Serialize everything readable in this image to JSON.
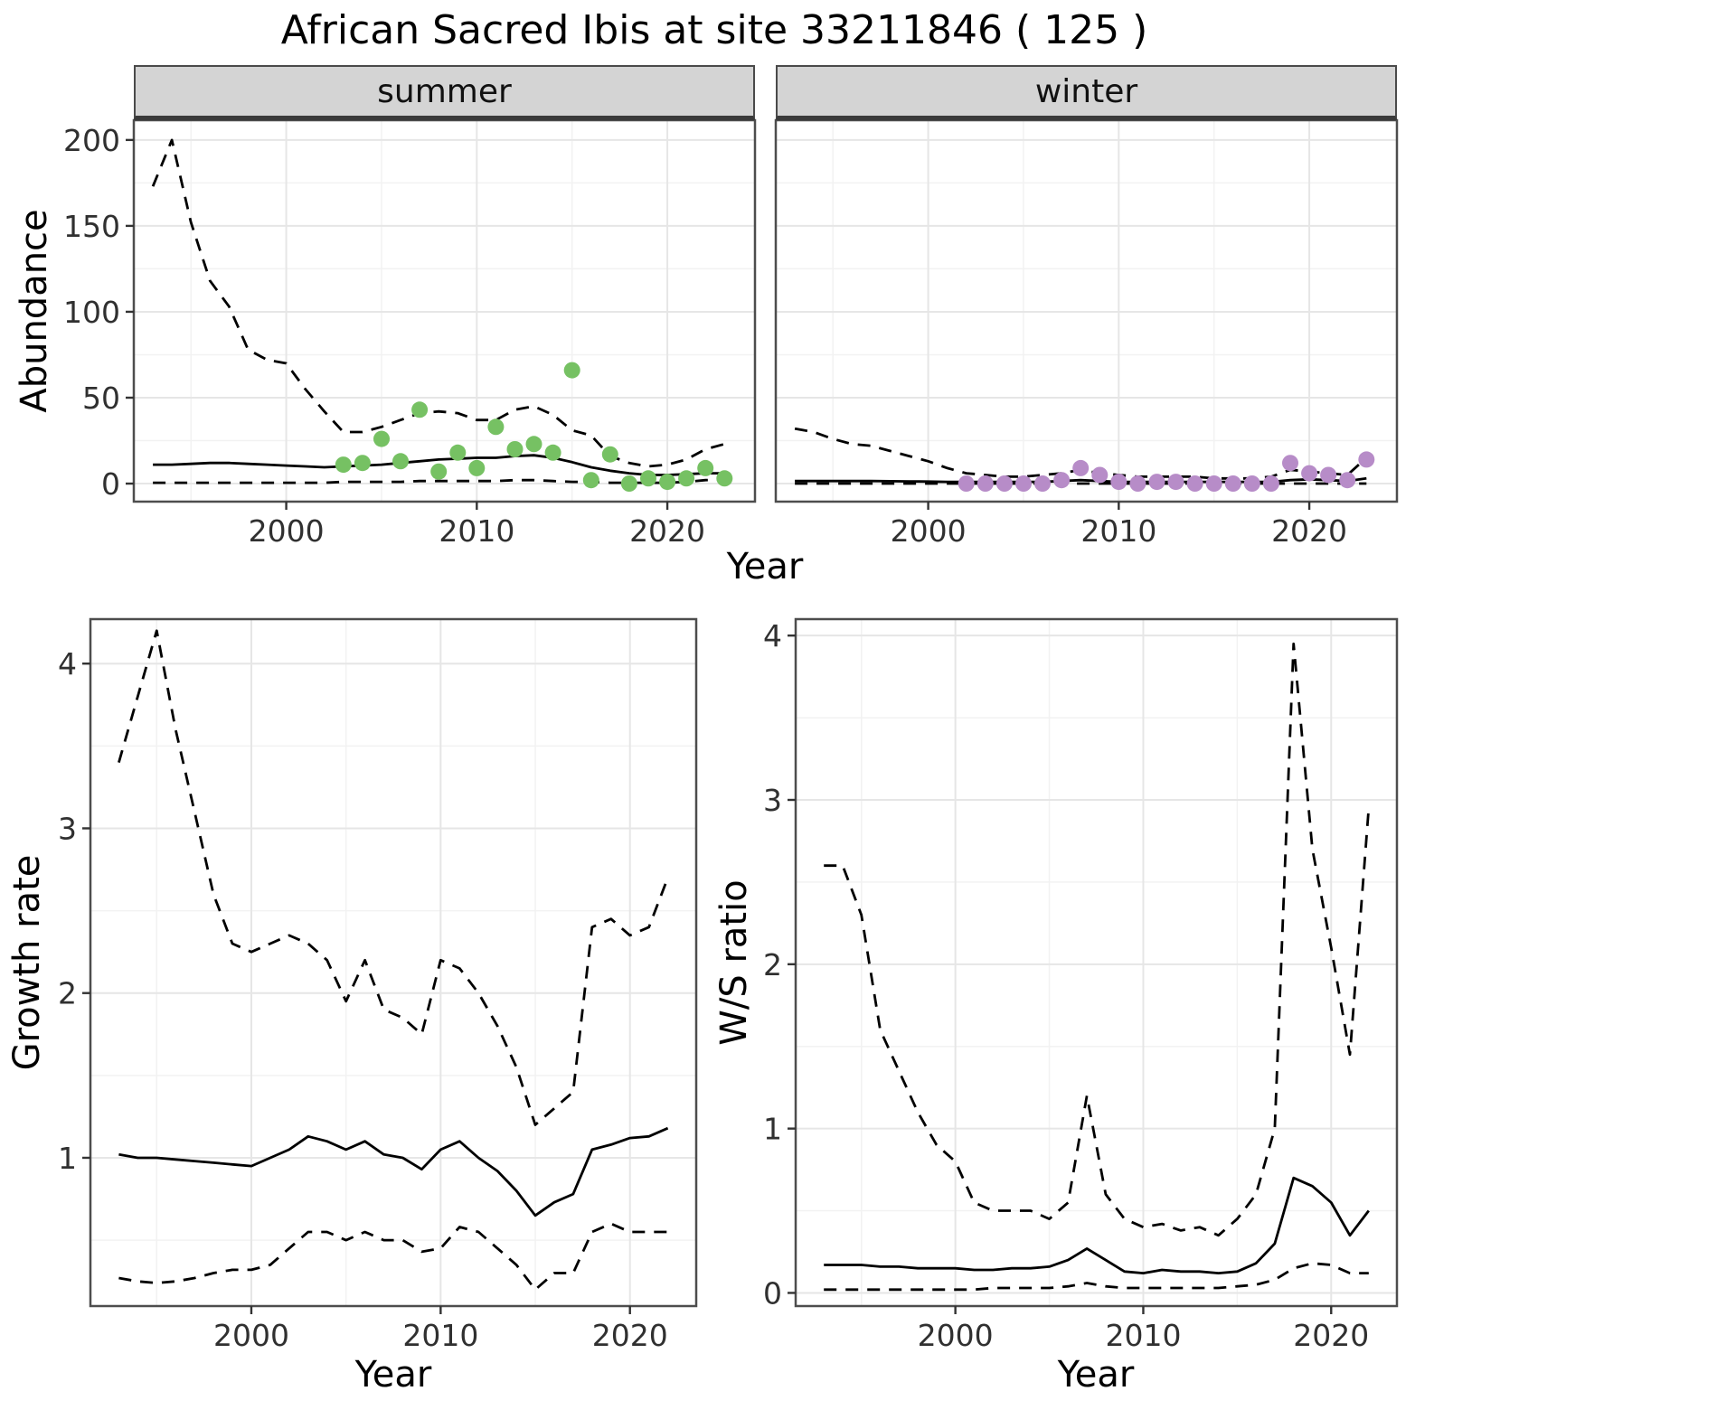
{
  "title": "African Sacred Ibis at site 33211846 ( 125 )",
  "colors": {
    "line": "#000000",
    "grid_major": "#e6e6e6",
    "grid_minor": "#f2f2f2",
    "panel_border": "#4d4d4d",
    "strip_bg": "#d4d4d4",
    "summer_points": "#76c163",
    "winter_points": "#b78cc8",
    "tick_text": "#303030"
  },
  "chart_data": [
    {
      "id": "abundance-summer",
      "type": "line",
      "facet": "summer",
      "ylabel": "Abundance",
      "xlabel": "Year",
      "xlim": [
        1992,
        2024.6
      ],
      "ylim": [
        -10.5,
        211.5
      ],
      "xticks": [
        2000,
        2010,
        2020
      ],
      "yticks": [
        0,
        50,
        100,
        150,
        200
      ],
      "xminor": [
        1995,
        2005,
        2015
      ],
      "yminor": [
        25,
        75,
        125,
        175
      ],
      "grid": true,
      "legend": "none",
      "series": [
        {
          "name": "upper-ci",
          "style": "dashed",
          "x": [
            1993,
            1994,
            1995,
            1996,
            1997,
            1998,
            1999,
            2000,
            2001,
            2002,
            2003,
            2004,
            2005,
            2006,
            2007,
            2008,
            2009,
            2010,
            2011,
            2012,
            2013,
            2014,
            2015,
            2016,
            2017,
            2018,
            2019,
            2020,
            2021,
            2022,
            2023
          ],
          "y": [
            173,
            200,
            152,
            118,
            103,
            78,
            72,
            70,
            55,
            42,
            30,
            30,
            33,
            37,
            41,
            42,
            41,
            37,
            37,
            43,
            45,
            40,
            31,
            28,
            16,
            12,
            10,
            11,
            14,
            20,
            23
          ]
        },
        {
          "name": "median",
          "style": "solid",
          "x": [
            1993,
            1994,
            1995,
            1996,
            1997,
            1998,
            1999,
            2000,
            2001,
            2002,
            2003,
            2004,
            2005,
            2006,
            2007,
            2008,
            2009,
            2010,
            2011,
            2012,
            2013,
            2014,
            2015,
            2016,
            2017,
            2018,
            2019,
            2020,
            2021,
            2022,
            2023
          ],
          "y": [
            11,
            11,
            11.5,
            12,
            12,
            11.5,
            11,
            10.5,
            10,
            9.5,
            10,
            10.5,
            11,
            12,
            13,
            14,
            14.5,
            15,
            15,
            16,
            16.5,
            15,
            12.5,
            9.5,
            7.5,
            6,
            5,
            5,
            5.5,
            6,
            6
          ]
        },
        {
          "name": "lower-ci",
          "style": "dashed",
          "x": [
            1993,
            1994,
            1995,
            1996,
            1997,
            1998,
            1999,
            2000,
            2001,
            2002,
            2003,
            2004,
            2005,
            2006,
            2007,
            2008,
            2009,
            2010,
            2011,
            2012,
            2013,
            2014,
            2015,
            2016,
            2017,
            2018,
            2019,
            2020,
            2021,
            2022,
            2023
          ],
          "y": [
            0.5,
            0.5,
            0.5,
            0.5,
            0.5,
            0.5,
            0.5,
            0.5,
            0.5,
            0.5,
            1,
            1,
            1,
            1,
            1.5,
            1.5,
            1.5,
            1.5,
            1.5,
            2,
            2,
            1.5,
            1,
            1,
            0.5,
            0.5,
            0.5,
            0.5,
            1,
            2,
            2.5
          ]
        },
        {
          "name": "observations",
          "style": "points",
          "color": "#76c163",
          "x": [
            2003,
            2004,
            2005,
            2006,
            2007,
            2008,
            2009,
            2010,
            2011,
            2012,
            2013,
            2014,
            2015,
            2016,
            2017,
            2018,
            2019,
            2020,
            2021,
            2022,
            2023
          ],
          "y": [
            11,
            12,
            26,
            13,
            43,
            7,
            18,
            9,
            33,
            20,
            23,
            18,
            66,
            2,
            17,
            0,
            3,
            1,
            3,
            9,
            3
          ]
        }
      ]
    },
    {
      "id": "abundance-winter",
      "type": "line",
      "facet": "winter",
      "ylabel": "Abundance",
      "xlabel": "Year",
      "xlim": [
        1992,
        2024.6
      ],
      "ylim": [
        -10.5,
        211.5
      ],
      "xticks": [
        2000,
        2010,
        2020
      ],
      "yticks": [
        0,
        50,
        100,
        150,
        200
      ],
      "xminor": [
        1995,
        2005,
        2015
      ],
      "yminor": [
        25,
        75,
        125,
        175
      ],
      "grid": true,
      "legend": "none",
      "series": [
        {
          "name": "upper-ci",
          "style": "dashed",
          "x": [
            1993,
            1994,
            1995,
            1996,
            1997,
            1998,
            1999,
            2000,
            2001,
            2002,
            2003,
            2004,
            2005,
            2006,
            2007,
            2008,
            2009,
            2010,
            2011,
            2012,
            2013,
            2014,
            2015,
            2016,
            2017,
            2018,
            2019,
            2020,
            2021,
            2022,
            2023
          ],
          "y": [
            32,
            30,
            26,
            23,
            22,
            19,
            16,
            13,
            9,
            6,
            5,
            4,
            4,
            5,
            6,
            8,
            6,
            5,
            4,
            4,
            4,
            4,
            3,
            3,
            3,
            4,
            8,
            7,
            6,
            5,
            15
          ]
        },
        {
          "name": "median",
          "style": "solid",
          "x": [
            1993,
            1994,
            1995,
            1996,
            1997,
            1998,
            1999,
            2000,
            2001,
            2002,
            2003,
            2004,
            2005,
            2006,
            2007,
            2008,
            2009,
            2010,
            2011,
            2012,
            2013,
            2014,
            2015,
            2016,
            2017,
            2018,
            2019,
            2020,
            2021,
            2022,
            2023
          ],
          "y": [
            1.5,
            1.5,
            1.5,
            1.5,
            1.5,
            1.4,
            1.3,
            1.2,
            1,
            1,
            1,
            1,
            1,
            1,
            1.5,
            2,
            1.5,
            1,
            1,
            1,
            1,
            1,
            1,
            1,
            1,
            1,
            2,
            2.5,
            2,
            1.5,
            3
          ]
        },
        {
          "name": "lower-ci",
          "style": "dashed",
          "x": [
            1993,
            1994,
            1995,
            1996,
            1997,
            1998,
            1999,
            2000,
            2001,
            2002,
            2003,
            2004,
            2005,
            2006,
            2007,
            2008,
            2009,
            2010,
            2011,
            2012,
            2013,
            2014,
            2015,
            2016,
            2017,
            2018,
            2019,
            2020,
            2021,
            2022,
            2023
          ],
          "y": [
            0,
            0,
            0,
            0,
            0,
            0,
            0,
            0,
            0,
            0,
            0,
            0,
            0,
            0,
            0,
            0,
            0,
            0,
            0,
            0,
            0,
            0,
            0,
            0,
            0,
            0,
            0,
            0,
            0,
            0,
            0
          ]
        },
        {
          "name": "observations",
          "style": "points",
          "color": "#b78cc8",
          "x": [
            2002,
            2003,
            2004,
            2005,
            2006,
            2007,
            2008,
            2009,
            2010,
            2011,
            2012,
            2013,
            2014,
            2015,
            2016,
            2017,
            2018,
            2019,
            2020,
            2021,
            2022,
            2023
          ],
          "y": [
            0,
            0,
            0,
            0,
            0,
            2,
            9,
            5,
            1,
            0,
            1,
            1,
            0,
            0,
            0,
            0,
            0,
            12,
            6,
            5,
            2,
            14
          ]
        }
      ]
    },
    {
      "id": "growth-rate",
      "type": "line",
      "facet": "",
      "ylabel": "Growth rate",
      "xlabel": "Year",
      "xlim": [
        1991.5,
        2023.5
      ],
      "ylim": [
        0.1,
        4.27
      ],
      "xticks": [
        2000,
        2010,
        2020
      ],
      "yticks": [
        1,
        2,
        3,
        4
      ],
      "xminor": [
        1995,
        2005,
        2015
      ],
      "yminor": [
        0.5,
        1.5,
        2.5,
        3.5
      ],
      "grid": true,
      "legend": "none",
      "series": [
        {
          "name": "upper-ci",
          "style": "dashed",
          "x": [
            1993,
            1994,
            1995,
            1996,
            1997,
            1998,
            1999,
            2000,
            2001,
            2002,
            2003,
            2004,
            2005,
            2006,
            2007,
            2008,
            2009,
            2010,
            2011,
            2012,
            2013,
            2014,
            2015,
            2016,
            2017,
            2018,
            2019,
            2020,
            2021,
            2022
          ],
          "y": [
            3.4,
            3.8,
            4.2,
            3.6,
            3.1,
            2.6,
            2.3,
            2.25,
            2.3,
            2.35,
            2.3,
            2.2,
            1.95,
            2.2,
            1.9,
            1.85,
            1.75,
            2.2,
            2.15,
            2.0,
            1.8,
            1.55,
            1.2,
            1.3,
            1.4,
            2.4,
            2.45,
            2.35,
            2.4,
            2.7
          ]
        },
        {
          "name": "median",
          "style": "solid",
          "x": [
            1993,
            1994,
            1995,
            1996,
            1997,
            1998,
            1999,
            2000,
            2001,
            2002,
            2003,
            2004,
            2005,
            2006,
            2007,
            2008,
            2009,
            2010,
            2011,
            2012,
            2013,
            2014,
            2015,
            2016,
            2017,
            2018,
            2019,
            2020,
            2021,
            2022
          ],
          "y": [
            1.02,
            1.0,
            1.0,
            0.99,
            0.98,
            0.97,
            0.96,
            0.95,
            1.0,
            1.05,
            1.13,
            1.1,
            1.05,
            1.1,
            1.02,
            1.0,
            0.93,
            1.05,
            1.1,
            1.0,
            0.92,
            0.8,
            0.65,
            0.73,
            0.78,
            1.05,
            1.08,
            1.12,
            1.13,
            1.18
          ]
        },
        {
          "name": "lower-ci",
          "style": "dashed",
          "x": [
            1993,
            1994,
            1995,
            1996,
            1997,
            1998,
            1999,
            2000,
            2001,
            2002,
            2003,
            2004,
            2005,
            2006,
            2007,
            2008,
            2009,
            2010,
            2011,
            2012,
            2013,
            2014,
            2015,
            2016,
            2017,
            2018,
            2019,
            2020,
            2021,
            2022
          ],
          "y": [
            0.27,
            0.25,
            0.24,
            0.25,
            0.27,
            0.3,
            0.32,
            0.32,
            0.35,
            0.45,
            0.55,
            0.55,
            0.5,
            0.55,
            0.5,
            0.5,
            0.43,
            0.45,
            0.58,
            0.55,
            0.45,
            0.35,
            0.2,
            0.3,
            0.3,
            0.55,
            0.6,
            0.55,
            0.55,
            0.55
          ]
        }
      ]
    },
    {
      "id": "ws-ratio",
      "type": "line",
      "facet": "",
      "ylabel": "W/S ratio",
      "xlabel": "Year",
      "xlim": [
        1991.5,
        2023.5
      ],
      "ylim": [
        -0.08,
        4.1
      ],
      "xticks": [
        2000,
        2010,
        2020
      ],
      "yticks": [
        0,
        1,
        2,
        3,
        4
      ],
      "xminor": [
        1995,
        2005,
        2015
      ],
      "yminor": [
        0.5,
        1.5,
        2.5,
        3.5
      ],
      "grid": true,
      "legend": "none",
      "series": [
        {
          "name": "upper-ci",
          "style": "dashed",
          "x": [
            1993,
            1994,
            1995,
            1996,
            1997,
            1998,
            1999,
            2000,
            2001,
            2002,
            2003,
            2004,
            2005,
            2006,
            2007,
            2008,
            2009,
            2010,
            2011,
            2012,
            2013,
            2014,
            2015,
            2016,
            2017,
            2018,
            2019,
            2020,
            2021,
            2022
          ],
          "y": [
            2.6,
            2.6,
            2.3,
            1.6,
            1.35,
            1.1,
            0.9,
            0.8,
            0.55,
            0.5,
            0.5,
            0.5,
            0.45,
            0.55,
            1.2,
            0.6,
            0.45,
            0.4,
            0.42,
            0.38,
            0.4,
            0.35,
            0.45,
            0.6,
            1.0,
            3.95,
            2.7,
            2.1,
            1.45,
            2.95
          ]
        },
        {
          "name": "median",
          "style": "solid",
          "x": [
            1993,
            1994,
            1995,
            1996,
            1997,
            1998,
            1999,
            2000,
            2001,
            2002,
            2003,
            2004,
            2005,
            2006,
            2007,
            2008,
            2009,
            2010,
            2011,
            2012,
            2013,
            2014,
            2015,
            2016,
            2017,
            2018,
            2019,
            2020,
            2021,
            2022
          ],
          "y": [
            0.17,
            0.17,
            0.17,
            0.16,
            0.16,
            0.15,
            0.15,
            0.15,
            0.14,
            0.14,
            0.15,
            0.15,
            0.16,
            0.2,
            0.27,
            0.2,
            0.13,
            0.12,
            0.14,
            0.13,
            0.13,
            0.12,
            0.13,
            0.18,
            0.3,
            0.7,
            0.65,
            0.55,
            0.35,
            0.5
          ]
        },
        {
          "name": "lower-ci",
          "style": "dashed",
          "x": [
            1993,
            1994,
            1995,
            1996,
            1997,
            1998,
            1999,
            2000,
            2001,
            2002,
            2003,
            2004,
            2005,
            2006,
            2007,
            2008,
            2009,
            2010,
            2011,
            2012,
            2013,
            2014,
            2015,
            2016,
            2017,
            2018,
            2019,
            2020,
            2021,
            2022
          ],
          "y": [
            0.02,
            0.02,
            0.02,
            0.02,
            0.02,
            0.02,
            0.02,
            0.02,
            0.02,
            0.03,
            0.03,
            0.03,
            0.03,
            0.04,
            0.06,
            0.04,
            0.03,
            0.03,
            0.03,
            0.03,
            0.03,
            0.03,
            0.04,
            0.05,
            0.08,
            0.15,
            0.18,
            0.17,
            0.12,
            0.12
          ]
        }
      ]
    }
  ]
}
